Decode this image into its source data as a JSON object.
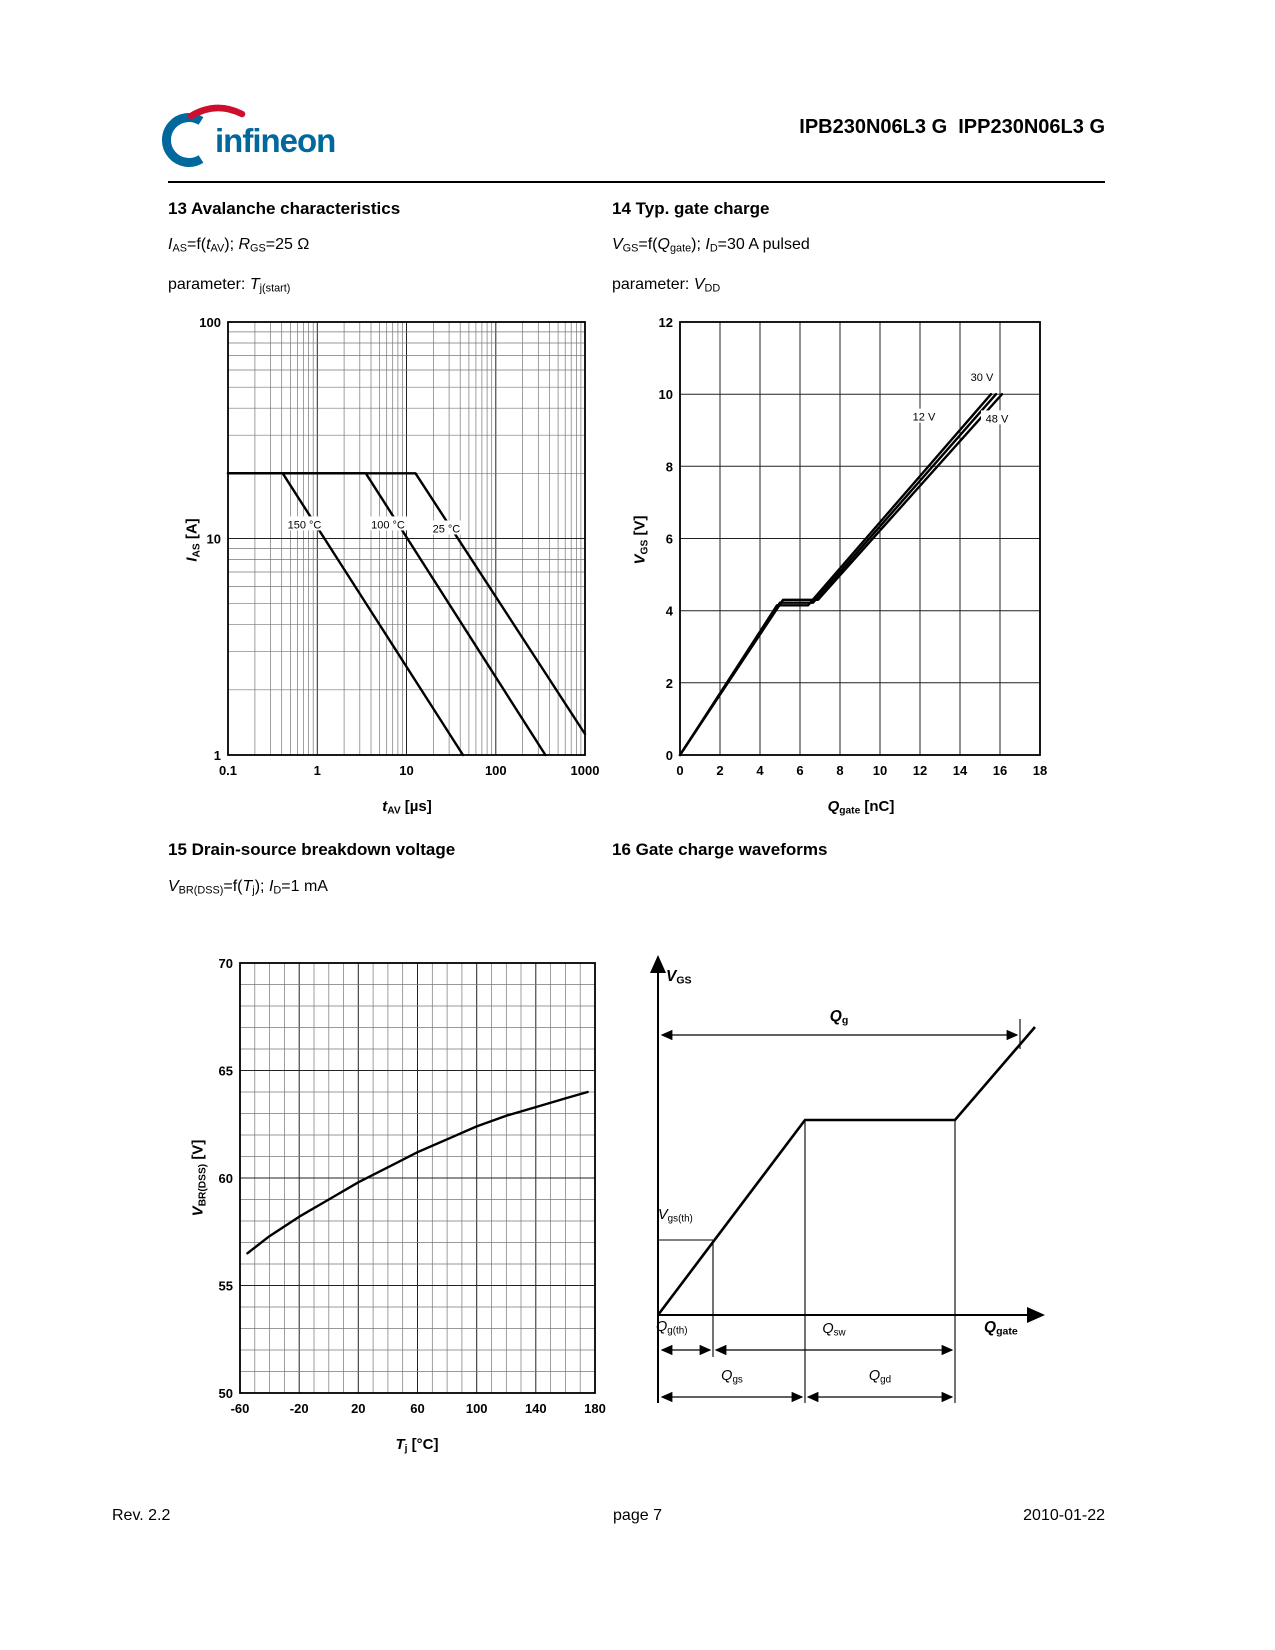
{
  "header": {
    "logo_text": "infineon",
    "part_numbers": "IPB230N06L3 G  IPP230N06L3 G",
    "brand_blue": "#00689D",
    "brand_red": "#CE0E2D"
  },
  "sections": {
    "s13": {
      "title": "13 Avalanche characteristics",
      "formula": "*I*_{AS}=f(*t*_{AV}); *R*_{GS}=25 Ω",
      "parameter": "parameter: *T*_{j(start)}"
    },
    "s14": {
      "title": "14 Typ. gate charge",
      "formula": "*V*_{GS}=f(*Q*_{gate}); *I*_{D}=30 A pulsed",
      "parameter": "parameter: *V*_{DD}"
    },
    "s15": {
      "title": "15 Drain-source breakdown voltage",
      "formula": "*V*_{BR(DSS)}=f(*T*_{j}); *I*_{D}=1 mA"
    },
    "s16": {
      "title": "16 Gate charge waveforms"
    }
  },
  "footer": {
    "rev": "Rev. 2.2",
    "page": "page 7",
    "date": "2010-01-22"
  },
  "chart_data": [
    {
      "id": "avalanche",
      "type": "line",
      "title": "13 Avalanche characteristics",
      "xscale": "log",
      "yscale": "log",
      "xlabel": "*t*_{AV} [µs]",
      "ylabel": "*I*_{AS} [A]",
      "xlim": [
        0.1,
        1000
      ],
      "ylim": [
        1,
        100
      ],
      "xticks": [
        0.1,
        1,
        10,
        100,
        1000
      ],
      "yticks": [
        1,
        10,
        100
      ],
      "series": [
        {
          "name": "150 °C",
          "points": [
            [
              0.1,
              20
            ],
            [
              0.41,
              20
            ],
            [
              43,
              1
            ]
          ],
          "label_at": [
            0.72,
            11.5
          ]
        },
        {
          "name": "100 °C",
          "points": [
            [
              0.1,
              20
            ],
            [
              3.5,
              20
            ],
            [
              360,
              1
            ]
          ],
          "label_at": [
            6.2,
            11.5
          ]
        },
        {
          "name": "25 °C",
          "points": [
            [
              0.1,
              20
            ],
            [
              12.6,
              20
            ],
            [
              1000,
              1.25
            ]
          ],
          "label_at": [
            28,
            11
          ]
        }
      ]
    },
    {
      "id": "gatecharge",
      "type": "line",
      "title": "14 Typ. gate charge",
      "xscale": "linear",
      "yscale": "linear",
      "xlabel": "*Q*_{gate} [nC]",
      "ylabel": "*V*_{GS} [V]",
      "xlim": [
        0,
        18
      ],
      "ylim": [
        0,
        12
      ],
      "xticks": [
        0,
        2,
        4,
        6,
        8,
        10,
        12,
        14,
        16,
        18
      ],
      "yticks": [
        0,
        2,
        4,
        6,
        8,
        10,
        12
      ],
      "grid": {
        "x_minor": 2,
        "x_major": 2,
        "y_minor": 2,
        "y_major": 2
      },
      "series": [
        {
          "name": "12 V",
          "points": [
            [
              0,
              0
            ],
            [
              4.85,
              4.15
            ],
            [
              6.4,
              4.15
            ],
            [
              15.55,
              10.0
            ]
          ],
          "label_at": [
            12.2,
            9.35
          ]
        },
        {
          "name": "30 V",
          "points": [
            [
              0,
              0
            ],
            [
              5.0,
              4.22
            ],
            [
              6.65,
              4.22
            ],
            [
              15.8,
              10.0
            ]
          ],
          "label_at": [
            15.1,
            10.45
          ]
        },
        {
          "name": "48 V",
          "points": [
            [
              0,
              0
            ],
            [
              5.15,
              4.3
            ],
            [
              6.9,
              4.3
            ],
            [
              16.1,
              10.0
            ]
          ],
          "label_at": [
            15.85,
            9.3
          ]
        }
      ]
    },
    {
      "id": "breakdown",
      "type": "line",
      "title": "15 Drain-source breakdown voltage",
      "xscale": "linear",
      "yscale": "linear",
      "xlabel": "*T*_{j} [°C]",
      "ylabel": "*V*_{BR(DSS)} [V]",
      "xlim": [
        -60,
        180
      ],
      "ylim": [
        50,
        70
      ],
      "xticks": [
        -60,
        -20,
        20,
        60,
        100,
        140,
        180
      ],
      "yticks": [
        50,
        55,
        60,
        65,
        70
      ],
      "grid": {
        "x_minor": 10,
        "x_major": 40,
        "y_minor": 1,
        "y_major": 5
      },
      "series": [
        {
          "name": "VBR(DSS)",
          "points": [
            [
              -55,
              56.5
            ],
            [
              -40,
              57.3
            ],
            [
              -20,
              58.2
            ],
            [
              0,
              59.0
            ],
            [
              20,
              59.8
            ],
            [
              40,
              60.5
            ],
            [
              60,
              61.2
            ],
            [
              80,
              61.8
            ],
            [
              100,
              62.4
            ],
            [
              120,
              62.9
            ],
            [
              140,
              63.3
            ],
            [
              160,
              63.7
            ],
            [
              175,
              64.0
            ]
          ]
        }
      ]
    },
    {
      "id": "waveform",
      "type": "diagram",
      "title": "16 Gate charge waveforms",
      "labels": {
        "y_axis": "*V*_{GS}",
        "x_axis": "*Q*_{gate}",
        "total_charge": "*Q*_{g}",
        "threshold_voltage": "*V*_{gs(th)}",
        "threshold_charge": "*Q*_{g(th)}",
        "switching_charge": "*Q*_{sw}",
        "gate_source_charge": "*Q*_{gs}",
        "gate_drain_charge": "*Q*_{gd}"
      }
    }
  ]
}
